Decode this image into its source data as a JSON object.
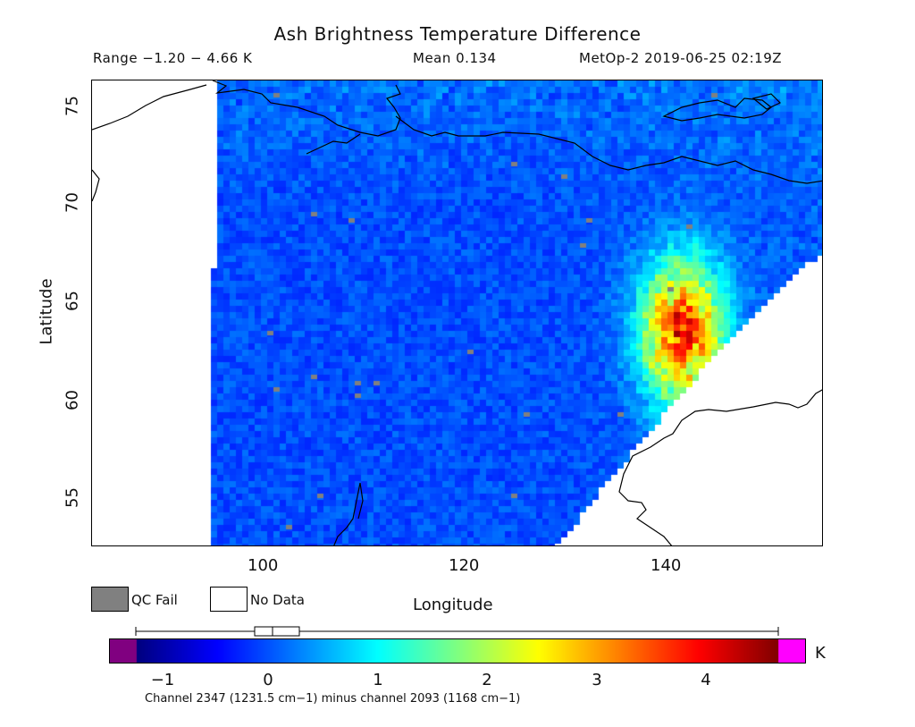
{
  "title": "Ash Brightness Temperature Difference",
  "range_text": "Range −1.20 − 4.66 K",
  "mean_text": "Mean 0.134",
  "satellite_text": "MetOp-2 2019-06-25 02:19Z",
  "axes": {
    "ylabel": "Latitude",
    "xlabel": "Longitude",
    "yticks": [
      "75",
      "70",
      "65",
      "60",
      "55"
    ],
    "xticks": [
      "100",
      "120",
      "140"
    ]
  },
  "legend": {
    "qc_fail": "QC Fail",
    "no_data": "No Data",
    "qc_fail_color": "#808080",
    "no_data_color": "#ffffff"
  },
  "colorbar": {
    "unit": "K",
    "ticks": [
      "−1",
      "0",
      "1",
      "2",
      "3",
      "4"
    ],
    "min": -1.2,
    "max": 4.66,
    "under_color": "#800080",
    "over_color": "#ff00ff"
  },
  "footnote": "Channel 2347 (1231.5 cm−1) minus channel 2093 (1168 cm−1)",
  "chart_data": {
    "type": "heatmap",
    "title": "Ash Brightness Temperature Difference",
    "xlabel": "Longitude",
    "ylabel": "Latitude",
    "xlim": [
      84,
      155
    ],
    "ylim": [
      52.5,
      76
    ],
    "value_range": [
      -1.2,
      4.66
    ],
    "mean": 0.134,
    "plume_peak_lon": 141,
    "plume_peak_lat": 63.5,
    "plume_peak_value": 4.5
  }
}
